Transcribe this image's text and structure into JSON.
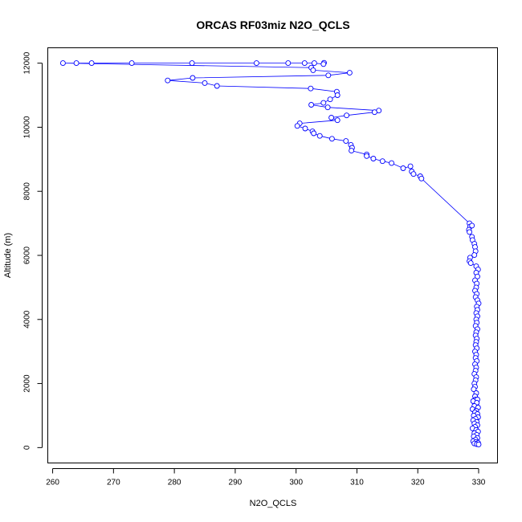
{
  "chart_data": {
    "type": "scatter",
    "title": "ORCAS RF03miz N2O_QCLS",
    "xlabel": "N2O_QCLS",
    "ylabel": "Altitude (m)",
    "xlim": [
      259.2,
      333.1
    ],
    "ylim": [
      -480,
      12480
    ],
    "xticks": [
      260,
      270,
      280,
      290,
      300,
      310,
      320,
      330
    ],
    "yticks": [
      0,
      2000,
      4000,
      6000,
      8000,
      10000,
      12000
    ],
    "marker": "open-circle",
    "line_connected": true,
    "grid": false,
    "series": [
      {
        "color": "#0000ff",
        "points": [
          [
            304.6,
            12010
          ],
          [
            304.5,
            11970
          ],
          [
            303.0,
            12000
          ],
          [
            301.4,
            12000
          ],
          [
            298.7,
            12000
          ],
          [
            293.5,
            12000
          ],
          [
            282.9,
            12000
          ],
          [
            273.0,
            12000
          ],
          [
            266.4,
            12000
          ],
          [
            263.9,
            12000
          ],
          [
            261.7,
            12000
          ],
          [
            302.5,
            11860
          ],
          [
            302.8,
            11780
          ],
          [
            308.8,
            11700
          ],
          [
            305.3,
            11620
          ],
          [
            283.0,
            11540
          ],
          [
            278.9,
            11460
          ],
          [
            285.0,
            11380
          ],
          [
            287.0,
            11290
          ],
          [
            302.4,
            11210
          ],
          [
            306.7,
            11110
          ],
          [
            306.8,
            11000
          ],
          [
            305.6,
            10870
          ],
          [
            304.5,
            10760
          ],
          [
            302.5,
            10700
          ],
          [
            305.2,
            10620
          ],
          [
            313.6,
            10520
          ],
          [
            312.9,
            10470
          ],
          [
            308.3,
            10370
          ],
          [
            305.8,
            10300
          ],
          [
            306.8,
            10220
          ],
          [
            300.6,
            10120
          ],
          [
            300.2,
            10040
          ],
          [
            301.5,
            9960
          ],
          [
            302.7,
            9870
          ],
          [
            302.9,
            9810
          ],
          [
            303.9,
            9730
          ],
          [
            305.9,
            9640
          ],
          [
            308.2,
            9570
          ],
          [
            309.0,
            9450
          ],
          [
            309.2,
            9360
          ],
          [
            309.1,
            9270
          ],
          [
            311.6,
            9150
          ],
          [
            311.6,
            9100
          ],
          [
            312.7,
            9020
          ],
          [
            314.2,
            8940
          ],
          [
            315.7,
            8880
          ],
          [
            317.6,
            8720
          ],
          [
            318.8,
            8780
          ],
          [
            319.0,
            8620
          ],
          [
            319.3,
            8540
          ],
          [
            320.4,
            8470
          ],
          [
            320.6,
            8400
          ],
          [
            328.5,
            7000
          ],
          [
            328.6,
            6900
          ],
          [
            328.9,
            6930
          ],
          [
            328.4,
            6800
          ],
          [
            328.5,
            6730
          ],
          [
            328.9,
            6580
          ],
          [
            329.0,
            6480
          ],
          [
            329.3,
            6360
          ],
          [
            329.4,
            6260
          ],
          [
            329.5,
            6130
          ],
          [
            329.3,
            6010
          ],
          [
            328.6,
            5930
          ],
          [
            328.5,
            5820
          ],
          [
            328.7,
            5760
          ],
          [
            329.6,
            5660
          ],
          [
            329.9,
            5560
          ],
          [
            329.6,
            5460
          ],
          [
            329.8,
            5340
          ],
          [
            329.4,
            5220
          ],
          [
            329.7,
            5120
          ],
          [
            329.6,
            5000
          ],
          [
            329.4,
            4900
          ],
          [
            329.7,
            4800
          ],
          [
            329.5,
            4700
          ],
          [
            329.8,
            4600
          ],
          [
            330.0,
            4500
          ],
          [
            329.7,
            4400
          ],
          [
            329.8,
            4300
          ],
          [
            329.6,
            4200
          ],
          [
            329.8,
            4100
          ],
          [
            329.6,
            4000
          ],
          [
            329.7,
            3900
          ],
          [
            329.5,
            3800
          ],
          [
            329.8,
            3700
          ],
          [
            329.6,
            3600
          ],
          [
            329.5,
            3500
          ],
          [
            329.7,
            3400
          ],
          [
            329.6,
            3300
          ],
          [
            329.5,
            3200
          ],
          [
            329.7,
            3100
          ],
          [
            329.4,
            3000
          ],
          [
            329.6,
            2900
          ],
          [
            329.5,
            2800
          ],
          [
            329.7,
            2700
          ],
          [
            329.4,
            2600
          ],
          [
            329.6,
            2500
          ],
          [
            329.5,
            2400
          ],
          [
            329.3,
            2300
          ],
          [
            329.6,
            2200
          ],
          [
            329.5,
            2100
          ],
          [
            329.3,
            2000
          ],
          [
            329.4,
            1900
          ],
          [
            329.2,
            1820
          ],
          [
            329.6,
            1700
          ],
          [
            329.4,
            1600
          ],
          [
            329.5,
            1500
          ],
          [
            329.8,
            1500
          ],
          [
            329.1,
            1450
          ],
          [
            329.7,
            1400
          ],
          [
            329.3,
            1300
          ],
          [
            329.9,
            1250
          ],
          [
            329.0,
            1200
          ],
          [
            329.6,
            1150
          ],
          [
            329.4,
            1100
          ],
          [
            329.8,
            1050
          ],
          [
            329.2,
            1000
          ],
          [
            329.9,
            950
          ],
          [
            329.5,
            900
          ],
          [
            329.1,
            850
          ],
          [
            329.7,
            800
          ],
          [
            329.3,
            750
          ],
          [
            329.8,
            700
          ],
          [
            329.4,
            650
          ],
          [
            329.0,
            600
          ],
          [
            329.6,
            550
          ],
          [
            329.9,
            500
          ],
          [
            329.3,
            450
          ],
          [
            329.7,
            400
          ],
          [
            329.2,
            350
          ],
          [
            329.8,
            300
          ],
          [
            329.5,
            250
          ],
          [
            329.1,
            200
          ],
          [
            329.6,
            180
          ],
          [
            329.9,
            150
          ],
          [
            329.3,
            130
          ],
          [
            329.7,
            110
          ],
          [
            330.0,
            100
          ]
        ]
      }
    ]
  }
}
